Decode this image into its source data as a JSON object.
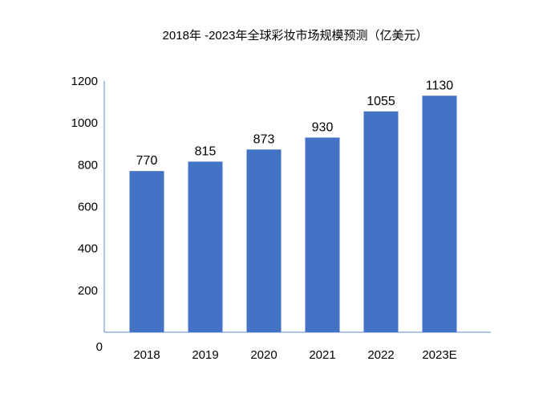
{
  "chart_data": {
    "type": "bar",
    "title": "2018年 -2023年全球彩妆市场规模预测（亿美元）",
    "xlabel": "",
    "ylabel": "",
    "categories": [
      "2018",
      "2019",
      "2020",
      "2021",
      "2022",
      "2023E"
    ],
    "series": [
      {
        "values": [
          770,
          815,
          873,
          930,
          1055,
          1130
        ]
      }
    ],
    "data_labels": [
      "770",
      "815",
      "873",
      "930",
      "1055",
      "1130"
    ],
    "ylim": [
      0,
      1200
    ],
    "yticks": [
      0,
      200,
      400,
      600,
      800,
      1000,
      1200
    ],
    "ytick_labels": [
      "0",
      "200",
      "400",
      "600",
      "800",
      "1000",
      "1200"
    ],
    "grid": false,
    "legend": "none",
    "colors": {
      "bar": "#4472C4",
      "axis": "#5B8BD6"
    }
  }
}
